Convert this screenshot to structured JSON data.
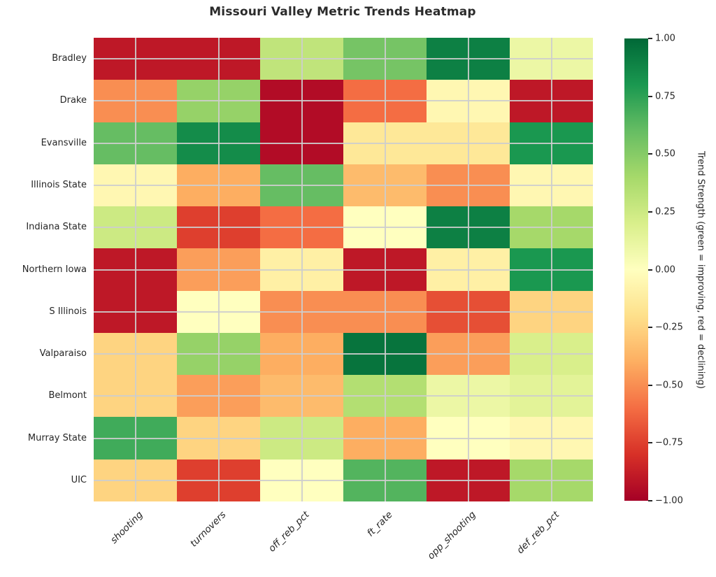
{
  "chart_data": {
    "type": "heatmap",
    "title": "Missouri Valley Metric Trends Heatmap",
    "x_tick_labels": [
      "shooting",
      "turnovers",
      "off_reb_pct",
      "ft_rate",
      "opp_shooting",
      "def_reb_pct"
    ],
    "y_tick_labels": [
      "Bradley",
      "Drake",
      "Evansville",
      "Illinois State",
      "Indiana State",
      "Northern Iowa",
      "S Illinois",
      "Valparaiso",
      "Belmont",
      "Murray State",
      "UIC"
    ],
    "matrix": [
      [
        -0.9,
        -0.9,
        0.3,
        0.55,
        0.9,
        0.1
      ],
      [
        -0.5,
        0.45,
        -0.95,
        -0.6,
        -0.05,
        -0.9
      ],
      [
        0.6,
        0.85,
        -0.95,
        -0.15,
        -0.15,
        0.8
      ],
      [
        -0.05,
        -0.4,
        0.6,
        -0.35,
        -0.5,
        -0.05
      ],
      [
        0.25,
        -0.75,
        -0.6,
        0.0,
        0.9,
        0.4
      ],
      [
        -0.9,
        -0.45,
        -0.1,
        -0.9,
        -0.1,
        0.8
      ],
      [
        -0.9,
        0.0,
        -0.5,
        -0.5,
        -0.7,
        -0.25
      ],
      [
        -0.25,
        0.45,
        -0.4,
        0.95,
        -0.45,
        0.2
      ],
      [
        -0.25,
        -0.45,
        -0.35,
        0.35,
        0.1,
        0.15
      ],
      [
        0.7,
        -0.25,
        0.25,
        -0.4,
        0.0,
        -0.05
      ],
      [
        -0.25,
        -0.75,
        0.0,
        0.65,
        -0.9,
        0.4
      ]
    ],
    "vmin": -1,
    "vmax": 1,
    "colormap": "RdYlGn",
    "colormap_stops": [
      "#a50026",
      "#d73027",
      "#f46d43",
      "#fdae61",
      "#fee08b",
      "#ffffbf",
      "#d9ef8b",
      "#a6d96a",
      "#66bd63",
      "#1a9850",
      "#006837"
    ],
    "grid": true,
    "colorbar": {
      "label": "Trend Strength (green = improving, red = declining)",
      "tick_labels": [
        "1.00",
        "0.75",
        "0.50",
        "0.25",
        "0.00",
        "−0.25",
        "−0.50",
        "−0.75",
        "−1.00"
      ]
    }
  },
  "style": {
    "background": "#ffffff",
    "text_color": "#262626",
    "grid_color": "#cdcdcd"
  }
}
